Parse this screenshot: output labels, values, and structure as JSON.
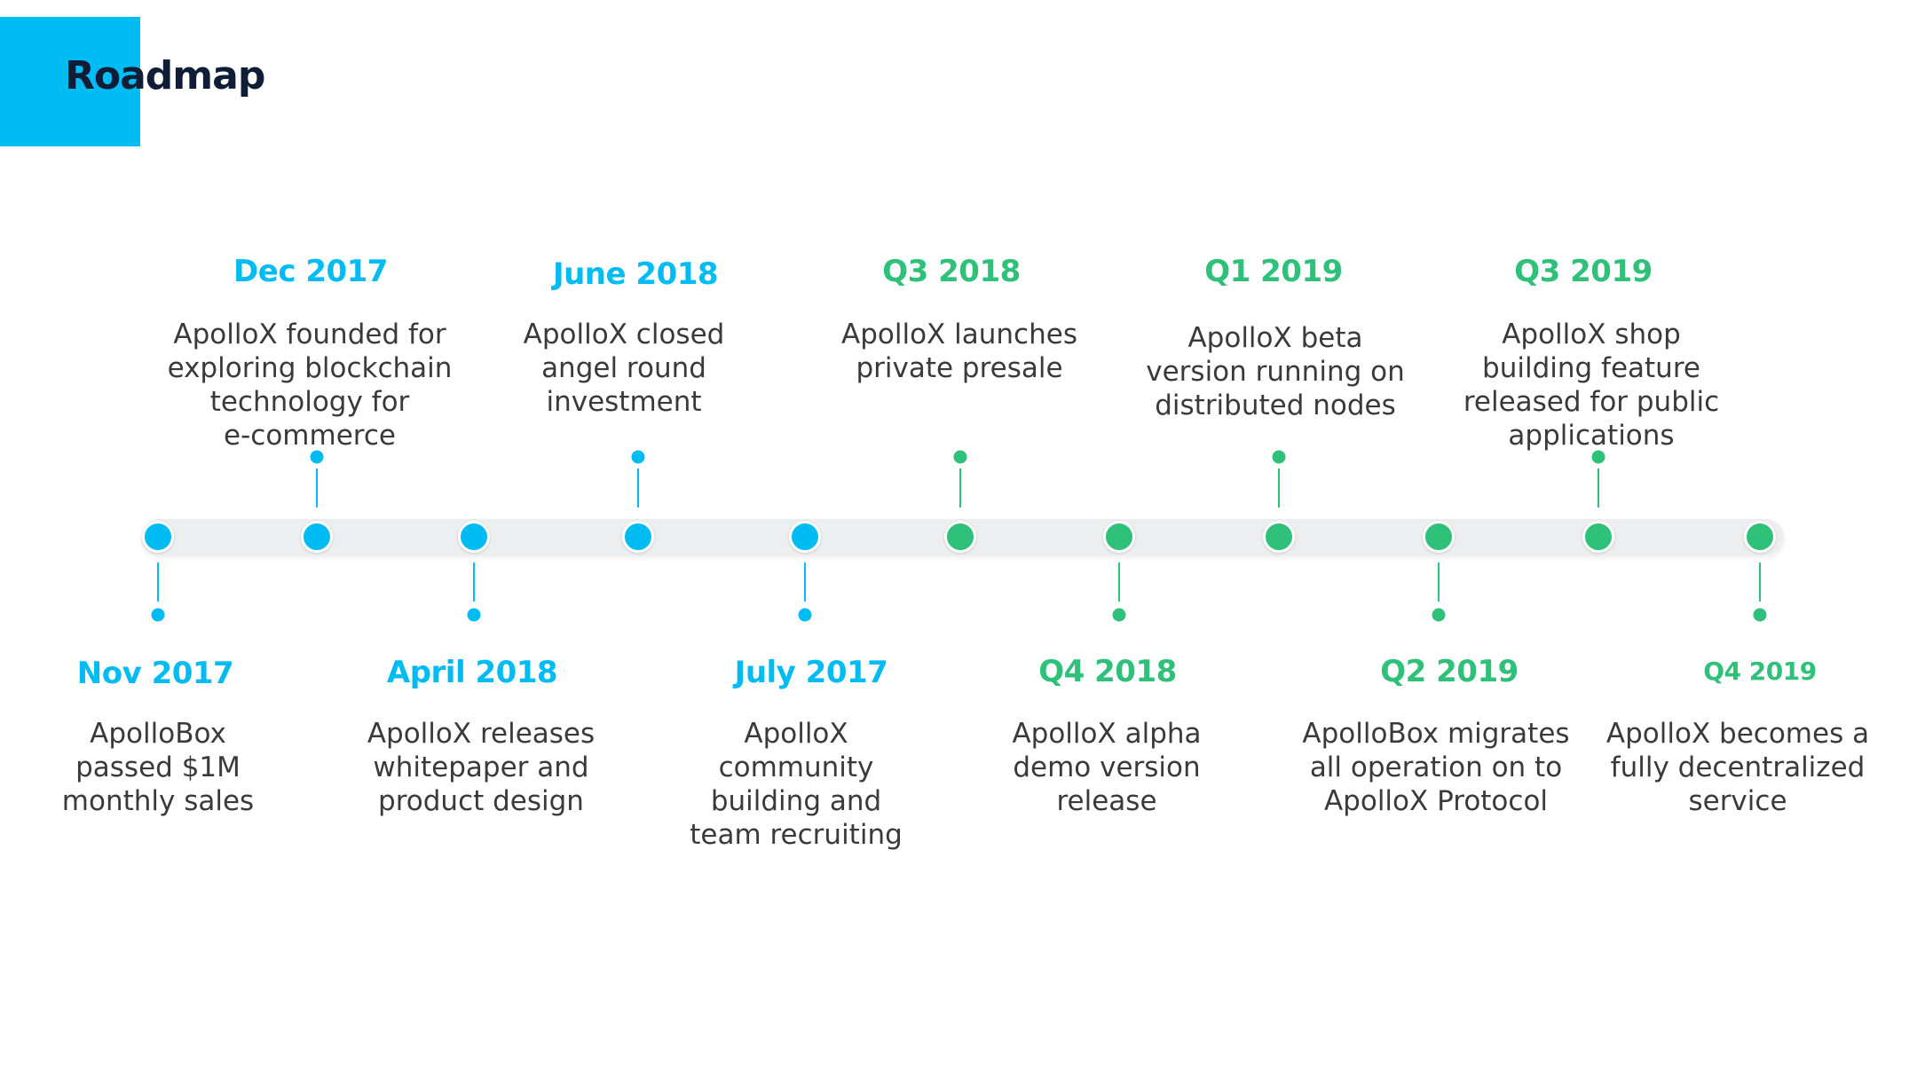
{
  "header": {
    "title": "Roadmap"
  },
  "colors": {
    "accent_blue": "#00BCF2",
    "accent_green": "#2FC07A",
    "title_dark": "#0F1E36",
    "track": "#EDEEF0"
  },
  "milestones": [
    {
      "date": "Nov 2017",
      "text": "ApolloBox\npassed $1M\nmonthly sales"
    },
    {
      "date": "Dec 2017",
      "text": "ApolloX founded for\nexploring blockchain\ntechnology for\ne-commerce"
    },
    {
      "date": "April 2018",
      "text": "ApolloX releases\nwhitepaper and\nproduct design"
    },
    {
      "date": "June 2018",
      "text": "ApolloX closed\nangel round\ninvestment"
    },
    {
      "date": "July 2017",
      "text": "ApolloX\ncommunity\nbuilding and\nteam recruiting"
    },
    {
      "date": "Q3 2018",
      "text": "ApolloX launches\nprivate presale"
    },
    {
      "date": "Q4 2018",
      "text": "ApolloX alpha\ndemo version\nrelease"
    },
    {
      "date": "Q1 2019",
      "text": "ApolloX beta\nversion running on\ndistributed nodes"
    },
    {
      "date": "Q2 2019",
      "text": "ApolloBox migrates\nall operation on to\nApolloX Protocol"
    },
    {
      "date": "Q3 2019",
      "text": "ApolloX shop\nbuilding feature\nreleased for public\napplications"
    },
    {
      "date": "Q4 2019",
      "text": "ApolloX becomes a\nfully decentralized\nservice"
    }
  ]
}
